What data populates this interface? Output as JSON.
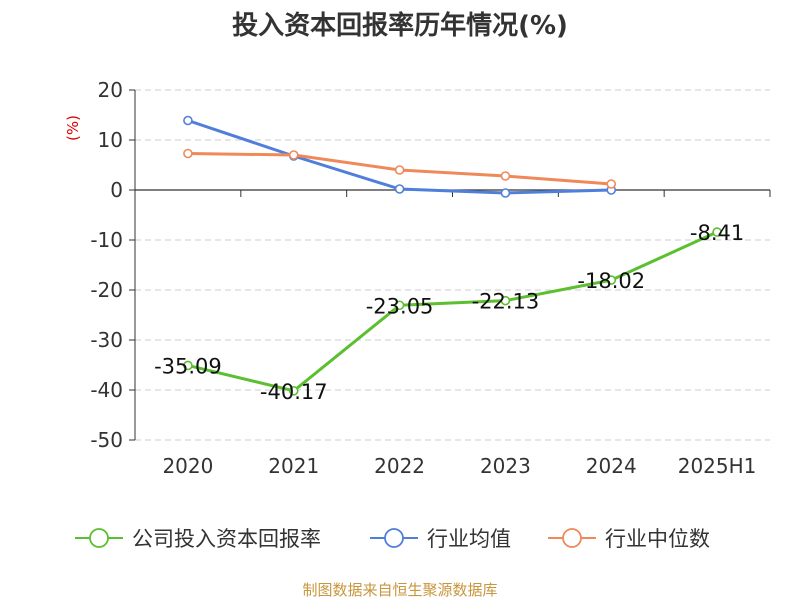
{
  "chart_data": {
    "type": "line",
    "title": "投入资本回报率历年情况(%)",
    "unit_label": "(%)",
    "categories": [
      "2020",
      "2021",
      "2022",
      "2023",
      "2024",
      "2025H1"
    ],
    "ylim": [
      -50,
      20
    ],
    "yticks": [
      20,
      10,
      0,
      -10,
      -20,
      -30,
      -40,
      -50
    ],
    "grid": true,
    "legend_position": "bottom",
    "series": [
      {
        "name": "公司投入资本回报率",
        "color": "#5bbf2f",
        "values": [
          -35.09,
          -40.17,
          -23.05,
          -22.13,
          -18.02,
          -8.41
        ],
        "labels": [
          "-35.09",
          "-40.17",
          "-23.05",
          "-22.13",
          "-18.02",
          "-8.41"
        ]
      },
      {
        "name": "行业均值",
        "color": "#4f7fdb",
        "values": [
          13.9,
          6.8,
          0.2,
          -0.6,
          0.0,
          null
        ]
      },
      {
        "name": "行业中位数",
        "color": "#f0895a",
        "values": [
          7.3,
          7.0,
          4.0,
          2.8,
          1.2,
          null
        ]
      }
    ]
  },
  "source_note": "制图数据来自恒生聚源数据库"
}
